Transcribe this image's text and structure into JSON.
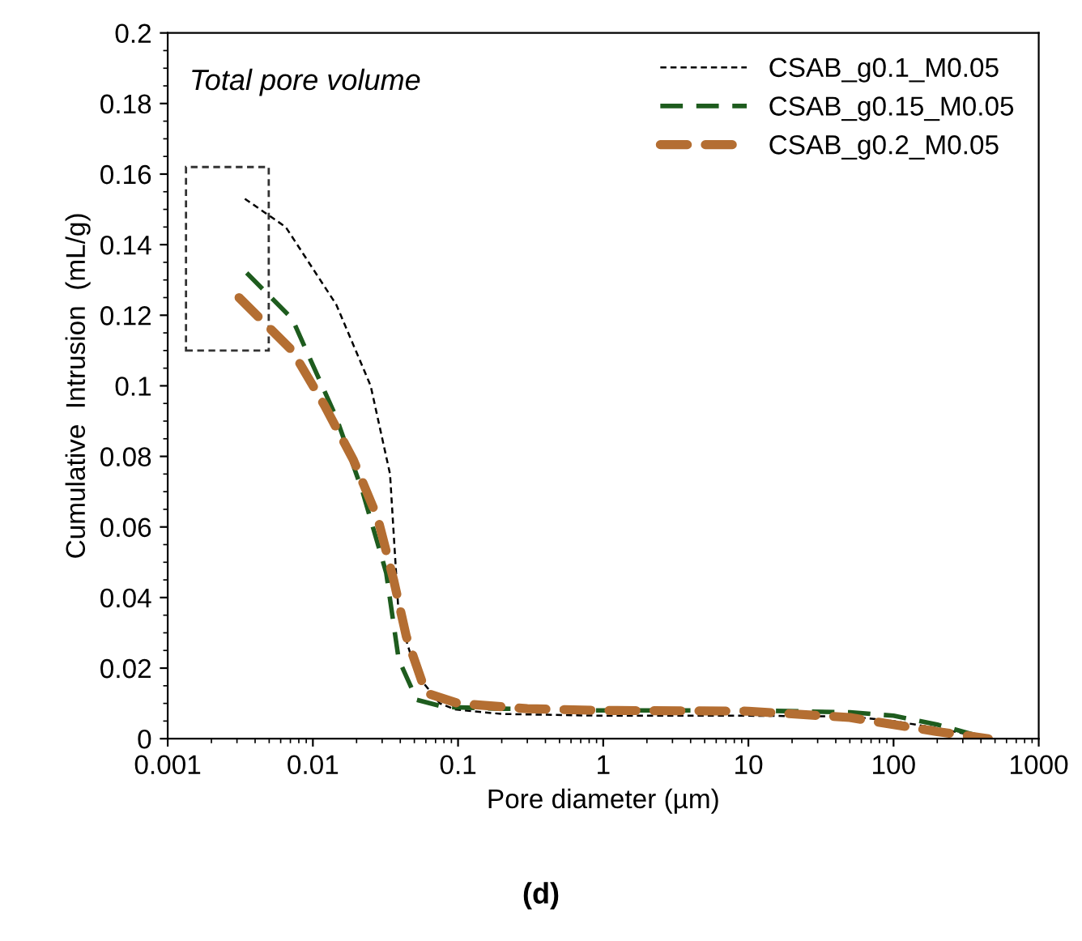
{
  "chart_data": {
    "type": "line",
    "xlabel": "Pore diameter (µm)",
    "ylabel": "Cumulative  Intrusion  (mL/g)",
    "log": "x",
    "xlim": [
      0.001,
      1000
    ],
    "xticks": [
      {
        "value": 0.001,
        "label": "0.001"
      },
      {
        "value": 0.01,
        "label": "0.01"
      },
      {
        "value": 0.1,
        "label": "0.1"
      },
      1,
      10,
      100,
      1000
    ],
    "ylim": [
      0,
      0.2
    ],
    "yticks": [
      0,
      0.02,
      0.04,
      0.06,
      0.08,
      0.1,
      0.12,
      0.14,
      0.16,
      0.18,
      0.2
    ],
    "grid": false,
    "legend": "top right",
    "marker": "none",
    "annotations": [
      "Total pore volume",
      "(d)"
    ],
    "series": [
      {
        "name": "CSAB_g0.1_M0.05",
        "color": "#000000",
        "line_style": "dotted",
        "x": [
          0.0034,
          0.0065,
          0.0145,
          0.025,
          0.034,
          0.039,
          0.047,
          0.056,
          0.075,
          0.095,
          0.2,
          1,
          10,
          50,
          100,
          200,
          450
        ],
        "values": [
          0.153,
          0.145,
          0.123,
          0.1,
          0.075,
          0.035,
          0.024,
          0.0165,
          0.01,
          0.0083,
          0.007,
          0.0065,
          0.0065,
          0.0063,
          0.005,
          0.003,
          0
        ]
      },
      {
        "name": "CSAB_g0.15_M0.05",
        "color": "#1e5c1e",
        "line_style": "dashed",
        "x": [
          0.0035,
          0.0072,
          0.0145,
          0.022,
          0.032,
          0.039,
          0.052,
          0.08,
          0.2,
          1,
          10,
          50,
          100,
          200,
          450
        ],
        "values": [
          0.132,
          0.119,
          0.091,
          0.07,
          0.047,
          0.0225,
          0.011,
          0.009,
          0.0085,
          0.008,
          0.008,
          0.0075,
          0.0065,
          0.004,
          0
        ]
      },
      {
        "name": "CSAB_g0.2_M0.05",
        "color": "#b46e32",
        "line_style": "dashed",
        "x": [
          0.0031,
          0.0072,
          0.012,
          0.019,
          0.028,
          0.036,
          0.044,
          0.06,
          0.1,
          0.3,
          1,
          10,
          50,
          100,
          200,
          450
        ],
        "values": [
          0.125,
          0.11,
          0.0945,
          0.079,
          0.0624,
          0.045,
          0.029,
          0.013,
          0.01,
          0.0085,
          0.008,
          0.0078,
          0.006,
          0.004,
          0.002,
          0
        ]
      }
    ]
  }
}
